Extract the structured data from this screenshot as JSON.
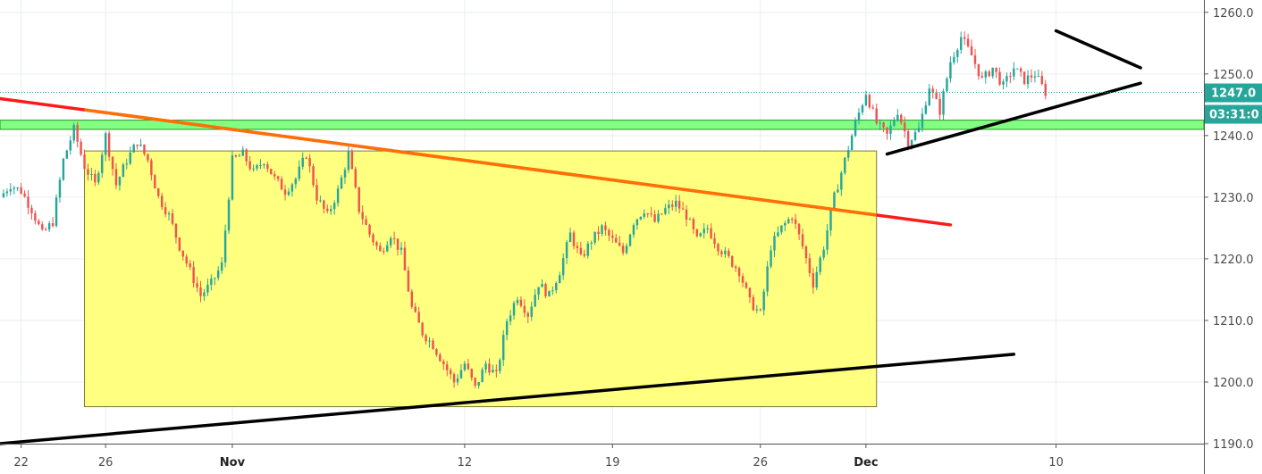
{
  "chart_data": {
    "type": "candlestick",
    "title": "",
    "xlabel": "",
    "ylabel": "",
    "ylim": [
      1190,
      1262
    ],
    "y_ticks": [
      1190.0,
      1200.0,
      1210.0,
      1220.0,
      1230.0,
      1240.0,
      1250.0,
      1260.0
    ],
    "y_tick_labels": [
      "1190.0",
      "1200.0",
      "1210.0",
      "1220.0",
      "1230.0",
      "1240.0",
      "1250.0",
      "1260.0"
    ],
    "x_range": [
      "2018-10-21",
      "2018-12-17"
    ],
    "x_ticks": [
      {
        "date": "2018-10-22",
        "label": "22",
        "bold": false
      },
      {
        "date": "2018-10-26",
        "label": "26",
        "bold": false
      },
      {
        "date": "2018-11-01",
        "label": "Nov",
        "bold": true
      },
      {
        "date": "2018-11-12",
        "label": "12",
        "bold": false
      },
      {
        "date": "2018-11-19",
        "label": "19",
        "bold": false
      },
      {
        "date": "2018-11-26",
        "label": "26",
        "bold": false
      },
      {
        "date": "2018-12-01",
        "label": "Dec",
        "bold": true
      },
      {
        "date": "2018-12-10",
        "label": "10",
        "bold": false
      }
    ],
    "grid": true,
    "current_price": {
      "label": "1247.0",
      "value": 1247.0,
      "color": "#26a69a"
    },
    "countdown": {
      "label": "03:31:0",
      "color": "#26a69a"
    },
    "colors": {
      "up": "#26a69a",
      "down": "#ef5350"
    },
    "path_points": [
      [
        "2018-10-21",
        1230
      ],
      [
        "2018-10-21 12:00",
        1232
      ],
      [
        "2018-10-22",
        1231
      ],
      [
        "2018-10-22 12:00",
        1228
      ],
      [
        "2018-10-23",
        1224
      ],
      [
        "2018-10-23 12:00",
        1226
      ],
      [
        "2018-10-24",
        1236
      ],
      [
        "2018-10-24 12:00",
        1241
      ],
      [
        "2018-10-25",
        1235
      ],
      [
        "2018-10-25 12:00",
        1232
      ],
      [
        "2018-10-26",
        1240
      ],
      [
        "2018-10-26 12:00",
        1232
      ],
      [
        "2018-10-27",
        1236
      ],
      [
        "2018-10-27 12:00",
        1239
      ],
      [
        "2018-10-28",
        1236
      ],
      [
        "2018-10-28 12:00",
        1230
      ],
      [
        "2018-10-29",
        1227
      ],
      [
        "2018-10-29 12:00",
        1222
      ],
      [
        "2018-10-30",
        1218
      ],
      [
        "2018-10-30 12:00",
        1214
      ],
      [
        "2018-10-31",
        1216
      ],
      [
        "2018-10-31 12:00",
        1219
      ],
      [
        "2018-11-01",
        1236
      ],
      [
        "2018-11-01 12:00",
        1237
      ],
      [
        "2018-11-02",
        1234
      ],
      [
        "2018-11-02 12:00",
        1236
      ],
      [
        "2018-11-03",
        1233
      ],
      [
        "2018-11-03 12:00",
        1231
      ],
      [
        "2018-11-04",
        1233
      ],
      [
        "2018-11-04 12:00",
        1237
      ],
      [
        "2018-11-05",
        1230
      ],
      [
        "2018-11-05 12:00",
        1227
      ],
      [
        "2018-11-06",
        1231
      ],
      [
        "2018-11-06 12:00",
        1237
      ],
      [
        "2018-11-07",
        1228
      ],
      [
        "2018-11-07 12:00",
        1224
      ],
      [
        "2018-11-08",
        1221
      ],
      [
        "2018-11-08 12:00",
        1224
      ],
      [
        "2018-11-09",
        1221
      ],
      [
        "2018-11-09 12:00",
        1212
      ],
      [
        "2018-11-10",
        1208
      ],
      [
        "2018-11-10 12:00",
        1206
      ],
      [
        "2018-11-11",
        1203
      ],
      [
        "2018-11-11 12:00",
        1200
      ],
      [
        "2018-11-12",
        1203
      ],
      [
        "2018-11-12 12:00",
        1199
      ],
      [
        "2018-11-13",
        1203
      ],
      [
        "2018-11-13 12:00",
        1201
      ],
      [
        "2018-11-14",
        1210
      ],
      [
        "2018-11-14 12:00",
        1214
      ],
      [
        "2018-11-15",
        1211
      ],
      [
        "2018-11-15 12:00",
        1216
      ],
      [
        "2018-11-16",
        1214
      ],
      [
        "2018-11-16 12:00",
        1218
      ],
      [
        "2018-11-17",
        1224
      ],
      [
        "2018-11-17 12:00",
        1220
      ],
      [
        "2018-11-18",
        1223
      ],
      [
        "2018-11-18 12:00",
        1225
      ],
      [
        "2018-11-19",
        1223
      ],
      [
        "2018-11-19 12:00",
        1221
      ],
      [
        "2018-11-20",
        1226
      ],
      [
        "2018-11-20 12:00",
        1228
      ],
      [
        "2018-11-21",
        1226
      ],
      [
        "2018-11-21 12:00",
        1228
      ],
      [
        "2018-11-22",
        1229
      ],
      [
        "2018-11-22 12:00",
        1227
      ],
      [
        "2018-11-23",
        1223
      ],
      [
        "2018-11-23 12:00",
        1225
      ],
      [
        "2018-11-24",
        1222
      ],
      [
        "2018-11-24 12:00",
        1220
      ],
      [
        "2018-11-25",
        1218
      ],
      [
        "2018-11-25 12:00",
        1213
      ],
      [
        "2018-11-26",
        1211
      ],
      [
        "2018-11-26 12:00",
        1222
      ],
      [
        "2018-11-27",
        1225
      ],
      [
        "2018-11-27 12:00",
        1227
      ],
      [
        "2018-11-28",
        1222
      ],
      [
        "2018-11-28 12:00",
        1216
      ],
      [
        "2018-11-29",
        1222
      ],
      [
        "2018-11-29 12:00",
        1230
      ],
      [
        "2018-11-30",
        1236
      ],
      [
        "2018-11-30 12:00",
        1242
      ],
      [
        "2018-12-01",
        1247
      ],
      [
        "2018-12-01 12:00",
        1242
      ],
      [
        "2018-12-02",
        1240
      ],
      [
        "2018-12-02 12:00",
        1244
      ],
      [
        "2018-12-03",
        1239
      ],
      [
        "2018-12-03 12:00",
        1241
      ],
      [
        "2018-12-04",
        1248
      ],
      [
        "2018-12-04 12:00",
        1244
      ],
      [
        "2018-12-05",
        1252
      ],
      [
        "2018-12-05 12:00",
        1256
      ],
      [
        "2018-12-06",
        1253
      ],
      [
        "2018-12-06 12:00",
        1249
      ],
      [
        "2018-12-07",
        1251
      ],
      [
        "2018-12-07 12:00",
        1248
      ],
      [
        "2018-12-08",
        1251
      ],
      [
        "2018-12-08 12:00",
        1249
      ],
      [
        "2018-12-09",
        1250
      ],
      [
        "2018-12-09 12:00",
        1247
      ]
    ],
    "annotations": [
      {
        "type": "rectangle",
        "name": "consolidation-box",
        "from": [
          "2018-10-25",
          1237.5
        ],
        "to": [
          "2018-12-01 12:00",
          1196
        ],
        "color": "#ffff80"
      },
      {
        "type": "band",
        "name": "resistance-band",
        "from": [
          "2018-10-21",
          1242.5
        ],
        "to": [
          "2018-12-17",
          1241
        ],
        "color": "#80ff80"
      },
      {
        "type": "line",
        "name": "down-trendline",
        "from": [
          "2018-10-21",
          1246
        ],
        "to": [
          "2018-12-05",
          1225.5
        ],
        "color": "#ff1a1a",
        "overlap_color": "#ff8c00"
      },
      {
        "type": "line",
        "name": "long-support-line",
        "from": [
          "2018-10-21",
          1190
        ],
        "to": [
          "2018-12-08",
          1204.5
        ],
        "color": "#000000"
      },
      {
        "type": "line",
        "name": "wedge-support-line",
        "from": [
          "2018-12-02",
          1237
        ],
        "to": [
          "2018-12-14",
          1248.5
        ],
        "color": "#000000"
      },
      {
        "type": "line",
        "name": "wedge-resistance-line",
        "from": [
          "2018-12-10",
          1257
        ],
        "to": [
          "2018-12-14",
          1251
        ],
        "color": "#000000"
      }
    ]
  }
}
